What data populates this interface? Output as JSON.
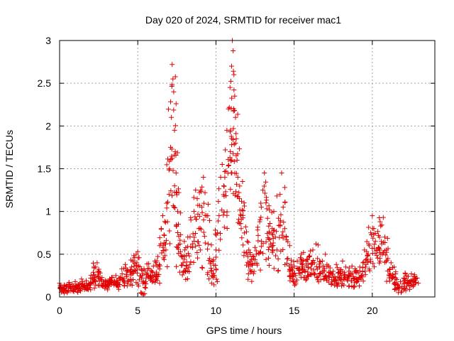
{
  "chart_data": {
    "type": "scatter",
    "title": "Day 020 of 2024, SRMTID for receiver mac1",
    "xlabel": "GPS time / hours",
    "ylabel": "SRMTID / TECUs",
    "xlim": [
      0,
      24
    ],
    "ylim": [
      0,
      3
    ],
    "x_ticks": [
      "0",
      "5",
      "10",
      "15",
      "20"
    ],
    "y_ticks": [
      "0",
      "0.5",
      "1",
      "1.5",
      "2",
      "2.5",
      "3"
    ],
    "grid": true,
    "marker": "+",
    "marker_color": "#e00000",
    "series": [
      {
        "name": "SRMTID",
        "points": [
          [
            0.0,
            0.16
          ],
          [
            0.1,
            0.12
          ],
          [
            0.2,
            0.1
          ],
          [
            0.3,
            0.14
          ],
          [
            0.4,
            0.08
          ],
          [
            0.5,
            0.13
          ],
          [
            0.6,
            0.17
          ],
          [
            0.7,
            0.11
          ],
          [
            0.8,
            0.15
          ],
          [
            0.9,
            0.12
          ],
          [
            1.0,
            0.18
          ],
          [
            1.1,
            0.13
          ],
          [
            1.2,
            0.1
          ],
          [
            1.3,
            0.16
          ],
          [
            1.4,
            0.21
          ],
          [
            1.5,
            0.12
          ],
          [
            1.6,
            0.14
          ],
          [
            1.7,
            0.19
          ],
          [
            1.8,
            0.11
          ],
          [
            1.9,
            0.15
          ],
          [
            2.0,
            0.17
          ],
          [
            2.1,
            0.22
          ],
          [
            2.2,
            0.26
          ],
          [
            2.3,
            0.35
          ],
          [
            2.4,
            0.4
          ],
          [
            2.45,
            0.3
          ],
          [
            2.5,
            0.24
          ],
          [
            2.6,
            0.28
          ],
          [
            2.7,
            0.2
          ],
          [
            2.8,
            0.16
          ],
          [
            2.9,
            0.14
          ],
          [
            3.0,
            0.18
          ],
          [
            3.1,
            0.15
          ],
          [
            3.2,
            0.21
          ],
          [
            3.3,
            0.17
          ],
          [
            3.4,
            0.23
          ],
          [
            3.5,
            0.19
          ],
          [
            3.6,
            0.25
          ],
          [
            3.7,
            0.16
          ],
          [
            3.8,
            0.22
          ],
          [
            3.9,
            0.2
          ],
          [
            4.0,
            0.27
          ],
          [
            4.1,
            0.33
          ],
          [
            4.2,
            0.38
          ],
          [
            4.3,
            0.24
          ],
          [
            4.4,
            0.18
          ],
          [
            4.5,
            0.29
          ],
          [
            4.6,
            0.35
          ],
          [
            4.7,
            0.41
          ],
          [
            4.8,
            0.46
          ],
          [
            4.9,
            0.5
          ],
          [
            5.0,
            0.53
          ],
          [
            5.05,
            0.36
          ],
          [
            5.1,
            0.2
          ],
          [
            5.2,
            0.05
          ],
          [
            5.3,
            0.25
          ],
          [
            5.4,
            0.33
          ],
          [
            5.5,
            0.18
          ],
          [
            5.6,
            0.28
          ],
          [
            5.7,
            0.39
          ],
          [
            5.8,
            0.24
          ],
          [
            5.9,
            0.3
          ],
          [
            6.0,
            0.36
          ],
          [
            6.1,
            0.42
          ],
          [
            6.2,
            0.27
          ],
          [
            6.3,
            0.35
          ],
          [
            6.4,
            0.6
          ],
          [
            6.5,
            0.8
          ],
          [
            6.6,
            0.95
          ],
          [
            6.7,
            0.72
          ],
          [
            6.8,
            0.55
          ],
          [
            6.9,
            0.88
          ],
          [
            7.0,
            1.2
          ],
          [
            7.1,
            1.75
          ],
          [
            7.15,
            2.1
          ],
          [
            7.2,
            2.72
          ],
          [
            7.25,
            2.55
          ],
          [
            7.3,
            2.4
          ],
          [
            7.35,
            1.95
          ],
          [
            7.4,
            1.7
          ],
          [
            7.45,
            1.45
          ],
          [
            7.5,
            1.22
          ],
          [
            7.55,
            1.0
          ],
          [
            7.6,
            0.85
          ],
          [
            7.7,
            0.62
          ],
          [
            7.8,
            0.47
          ],
          [
            7.9,
            0.4
          ],
          [
            8.0,
            0.55
          ],
          [
            8.1,
            0.36
          ],
          [
            8.2,
            0.7
          ],
          [
            8.3,
            0.48
          ],
          [
            8.4,
            0.9
          ],
          [
            8.5,
            0.62
          ],
          [
            8.6,
            1.0
          ],
          [
            8.7,
            1.25
          ],
          [
            8.8,
            1.15
          ],
          [
            8.9,
            0.8
          ],
          [
            9.0,
            0.55
          ],
          [
            9.1,
            1.05
          ],
          [
            9.2,
            1.4
          ],
          [
            9.3,
            1.22
          ],
          [
            9.4,
            0.95
          ],
          [
            9.5,
            0.62
          ],
          [
            9.6,
            0.45
          ],
          [
            9.7,
            0.3
          ],
          [
            9.8,
            0.42
          ],
          [
            9.9,
            0.25
          ],
          [
            10.0,
            0.55
          ],
          [
            10.1,
            0.75
          ],
          [
            10.2,
            0.95
          ],
          [
            10.3,
            1.4
          ],
          [
            10.4,
            1.55
          ],
          [
            10.5,
            1.3
          ],
          [
            10.6,
            1.72
          ],
          [
            10.7,
            1.95
          ],
          [
            10.8,
            2.2
          ],
          [
            10.9,
            2.45
          ],
          [
            11.0,
            2.7
          ],
          [
            11.05,
            3.0
          ],
          [
            11.1,
            2.88
          ],
          [
            11.15,
            2.6
          ],
          [
            11.2,
            2.35
          ],
          [
            11.25,
            2.1
          ],
          [
            11.3,
            1.85
          ],
          [
            11.35,
            1.6
          ],
          [
            11.4,
            1.4
          ],
          [
            11.5,
            1.15
          ],
          [
            11.6,
            0.95
          ],
          [
            11.7,
            1.35
          ],
          [
            11.8,
            1.1
          ],
          [
            11.9,
            0.82
          ],
          [
            12.0,
            0.65
          ],
          [
            12.1,
            0.55
          ],
          [
            12.2,
            0.42
          ],
          [
            12.3,
            0.3
          ],
          [
            12.4,
            0.45
          ],
          [
            12.5,
            0.58
          ],
          [
            12.6,
            0.5
          ],
          [
            12.7,
            0.72
          ],
          [
            12.8,
            0.88
          ],
          [
            12.9,
            1.05
          ],
          [
            13.0,
            1.25
          ],
          [
            13.1,
            1.45
          ],
          [
            13.2,
            1.1
          ],
          [
            13.3,
            0.92
          ],
          [
            13.4,
            0.75
          ],
          [
            13.5,
            0.62
          ],
          [
            13.6,
            0.8
          ],
          [
            13.7,
            1.0
          ],
          [
            13.8,
            0.7
          ],
          [
            13.9,
            0.55
          ],
          [
            14.0,
            0.92
          ],
          [
            14.1,
            1.2
          ],
          [
            14.2,
            1.45
          ],
          [
            14.3,
            1.05
          ],
          [
            14.4,
            0.8
          ],
          [
            14.5,
            0.7
          ],
          [
            14.6,
            0.45
          ],
          [
            14.7,
            0.3
          ],
          [
            14.8,
            0.38
          ],
          [
            14.9,
            0.28
          ],
          [
            15.0,
            0.36
          ],
          [
            15.1,
            0.25
          ],
          [
            15.2,
            0.42
          ],
          [
            15.3,
            0.33
          ],
          [
            15.4,
            0.46
          ],
          [
            15.5,
            0.38
          ],
          [
            15.6,
            0.52
          ],
          [
            15.7,
            0.3
          ],
          [
            15.8,
            0.44
          ],
          [
            15.9,
            0.35
          ],
          [
            16.0,
            0.48
          ],
          [
            16.1,
            0.38
          ],
          [
            16.2,
            0.55
          ],
          [
            16.3,
            0.4
          ],
          [
            16.4,
            0.62
          ],
          [
            16.5,
            0.45
          ],
          [
            16.6,
            0.35
          ],
          [
            16.7,
            0.28
          ],
          [
            16.8,
            0.42
          ],
          [
            16.9,
            0.3
          ],
          [
            17.0,
            0.5
          ],
          [
            17.1,
            0.38
          ],
          [
            17.2,
            0.25
          ],
          [
            17.3,
            0.34
          ],
          [
            17.4,
            0.2
          ],
          [
            17.5,
            0.3
          ],
          [
            17.6,
            0.24
          ],
          [
            17.7,
            0.38
          ],
          [
            17.8,
            0.28
          ],
          [
            17.9,
            0.22
          ],
          [
            18.0,
            0.32
          ],
          [
            18.1,
            0.42
          ],
          [
            18.2,
            0.25
          ],
          [
            18.3,
            0.35
          ],
          [
            18.4,
            0.2
          ],
          [
            18.5,
            0.3
          ],
          [
            18.6,
            0.26
          ],
          [
            18.7,
            0.36
          ],
          [
            18.8,
            0.22
          ],
          [
            18.9,
            0.3
          ],
          [
            19.0,
            0.18
          ],
          [
            19.1,
            0.28
          ],
          [
            19.2,
            0.35
          ],
          [
            19.3,
            0.25
          ],
          [
            19.4,
            0.4
          ],
          [
            19.5,
            0.55
          ],
          [
            19.6,
            0.38
          ],
          [
            19.7,
            0.48
          ],
          [
            19.8,
            0.6
          ],
          [
            19.9,
            0.75
          ],
          [
            20.0,
            0.95
          ],
          [
            20.1,
            0.8
          ],
          [
            20.2,
            0.65
          ],
          [
            20.3,
            0.55
          ],
          [
            20.4,
            0.72
          ],
          [
            20.5,
            0.88
          ],
          [
            20.6,
            0.62
          ],
          [
            20.7,
            0.93
          ],
          [
            20.8,
            0.7
          ],
          [
            20.9,
            0.55
          ],
          [
            21.0,
            0.45
          ],
          [
            21.1,
            0.32
          ],
          [
            21.2,
            0.4
          ],
          [
            21.3,
            0.26
          ],
          [
            21.4,
            0.35
          ],
          [
            21.5,
            0.22
          ],
          [
            21.6,
            0.15
          ],
          [
            21.7,
            0.1
          ],
          [
            21.8,
            0.18
          ],
          [
            21.9,
            0.12
          ],
          [
            22.0,
            0.22
          ],
          [
            22.1,
            0.28
          ],
          [
            22.2,
            0.16
          ],
          [
            22.3,
            0.24
          ],
          [
            22.4,
            0.18
          ],
          [
            22.5,
            0.27
          ],
          [
            22.6,
            0.2
          ],
          [
            22.7,
            0.26
          ],
          [
            22.8,
            0.22
          ]
        ]
      }
    ]
  }
}
